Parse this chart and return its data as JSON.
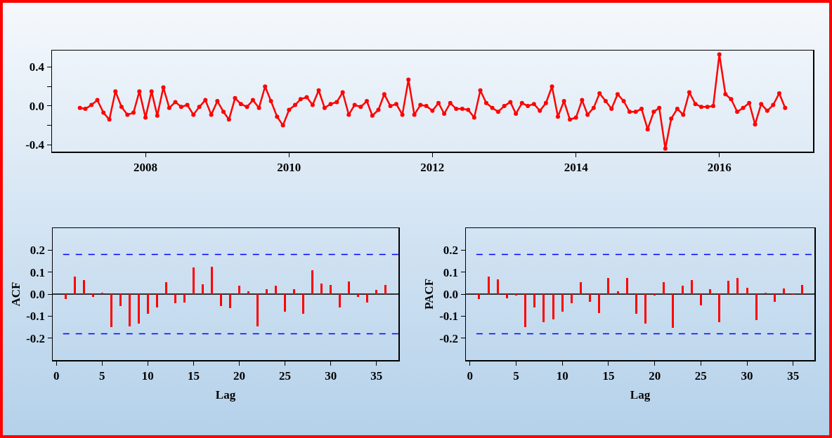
{
  "chart_data": [
    {
      "type": "line",
      "color": "#ff0000",
      "marker": "circle",
      "x": [
        "2007-02",
        "2007-03",
        "2007-04",
        "2007-05",
        "2007-06",
        "2007-07",
        "2007-08",
        "2007-09",
        "2007-10",
        "2007-11",
        "2007-12",
        "2008-01",
        "2008-02",
        "2008-03",
        "2008-04",
        "2008-05",
        "2008-06",
        "2008-07",
        "2008-08",
        "2008-09",
        "2008-10",
        "2008-11",
        "2008-12",
        "2009-01",
        "2009-02",
        "2009-03",
        "2009-04",
        "2009-05",
        "2009-06",
        "2009-07",
        "2009-08",
        "2009-09",
        "2009-10",
        "2009-11",
        "2009-12",
        "2010-01",
        "2010-02",
        "2010-03",
        "2010-04",
        "2010-05",
        "2010-06",
        "2010-07",
        "2010-08",
        "2010-09",
        "2010-10",
        "2010-11",
        "2010-12",
        "2011-01",
        "2011-02",
        "2011-03",
        "2011-04",
        "2011-05",
        "2011-06",
        "2011-07",
        "2011-08",
        "2011-09",
        "2011-10",
        "2011-11",
        "2011-12",
        "2012-01",
        "2012-02",
        "2012-03",
        "2012-04",
        "2012-05",
        "2012-06",
        "2012-07",
        "2012-08",
        "2012-09",
        "2012-10",
        "2012-11",
        "2012-12",
        "2013-01",
        "2013-02",
        "2013-03",
        "2013-04",
        "2013-05",
        "2013-06",
        "2013-07",
        "2013-08",
        "2013-09",
        "2013-10",
        "2013-11",
        "2013-12",
        "2014-01",
        "2014-02",
        "2014-03",
        "2014-04",
        "2014-05",
        "2014-06",
        "2014-07",
        "2014-08",
        "2014-09",
        "2014-10",
        "2014-11",
        "2014-12",
        "2015-01",
        "2015-02",
        "2015-03",
        "2015-04",
        "2015-05",
        "2015-06",
        "2015-07",
        "2015-08",
        "2015-09",
        "2015-10",
        "2015-11",
        "2015-12",
        "2016-01",
        "2016-02",
        "2016-03",
        "2016-04",
        "2016-05",
        "2016-06",
        "2016-07",
        "2016-08",
        "2016-09",
        "2016-10",
        "2016-11",
        "2016-12"
      ],
      "values": [
        -0.02,
        -0.03,
        0.01,
        0.06,
        -0.07,
        -0.14,
        0.15,
        -0.01,
        -0.09,
        -0.07,
        0.15,
        -0.12,
        0.15,
        -0.1,
        0.19,
        -0.02,
        0.04,
        -0.01,
        0.01,
        -0.09,
        -0.01,
        0.06,
        -0.09,
        0.05,
        -0.06,
        -0.14,
        0.08,
        0.02,
        -0.01,
        0.06,
        -0.02,
        0.2,
        0.05,
        -0.11,
        -0.2,
        -0.04,
        0.01,
        0.07,
        0.09,
        0.01,
        0.16,
        -0.02,
        0.02,
        0.04,
        0.14,
        -0.09,
        0.01,
        -0.01,
        0.05,
        -0.1,
        -0.04,
        0.12,
        0.0,
        0.02,
        -0.09,
        0.27,
        -0.09,
        0.01,
        0.0,
        -0.05,
        0.03,
        -0.08,
        0.03,
        -0.03,
        -0.03,
        -0.04,
        -0.12,
        0.16,
        0.03,
        -0.02,
        -0.06,
        0.0,
        0.04,
        -0.08,
        0.03,
        0.0,
        0.02,
        -0.05,
        0.03,
        0.2,
        -0.11,
        0.05,
        -0.14,
        -0.12,
        0.06,
        -0.09,
        -0.02,
        0.13,
        0.05,
        -0.03,
        0.12,
        0.05,
        -0.06,
        -0.06,
        -0.03,
        -0.24,
        -0.06,
        -0.02,
        -0.44,
        -0.13,
        -0.03,
        -0.09,
        0.14,
        0.02,
        -0.01,
        -0.01,
        0.0,
        0.53,
        0.12,
        0.07,
        -0.06,
        -0.02,
        0.03,
        -0.19,
        0.02,
        -0.05,
        0.01,
        0.13,
        -0.02
      ],
      "xlim": [
        "2006-09-12",
        "2017-04-22"
      ],
      "xticks": [
        "2008",
        "2010",
        "2012",
        "2014",
        "2016"
      ],
      "ylim": [
        -0.47,
        0.57
      ],
      "yticks": [
        0.4,
        {
          "value": 0.2,
          "label": null
        },
        {
          "value": 0,
          "label": "0.0"
        },
        {
          "value": -0.2,
          "label": null
        },
        -0.4
      ]
    },
    {
      "type": "bar",
      "color": "#ff0000",
      "xlabel": "Lag",
      "ylabel": "ACF",
      "x": [
        1,
        2,
        3,
        4,
        5,
        6,
        7,
        8,
        9,
        10,
        11,
        12,
        13,
        14,
        15,
        16,
        17,
        18,
        19,
        20,
        21,
        22,
        23,
        24,
        25,
        26,
        27,
        28,
        29,
        30,
        31,
        32,
        33,
        34,
        35,
        36
      ],
      "values": [
        -0.022,
        0.08,
        0.064,
        -0.014,
        0.006,
        -0.15,
        -0.054,
        -0.146,
        -0.135,
        -0.089,
        -0.062,
        0.053,
        -0.042,
        -0.037,
        0.122,
        0.044,
        0.123,
        -0.054,
        -0.065,
        0.037,
        0.014,
        -0.146,
        0.022,
        0.037,
        -0.081,
        0.022,
        -0.088,
        0.11,
        0.049,
        0.041,
        -0.062,
        0.056,
        -0.012,
        -0.037,
        0.018,
        0.041
      ],
      "xlim": [
        -0.4,
        37.4
      ],
      "xticks": [
        0,
        5,
        10,
        15,
        20,
        25,
        30,
        35
      ],
      "ylim": [
        -0.3,
        0.3
      ],
      "yticks": [
        0.2,
        0.1,
        {
          "value": 0,
          "label": "0.0"
        },
        -0.1,
        -0.2
      ],
      "ref_lines": [
        {
          "axis": "y",
          "value": 0.18,
          "color": "#0000ff",
          "line_style": "dashed"
        },
        {
          "axis": "y",
          "value": -0.18,
          "color": "#0000ff",
          "line_style": "dashed"
        }
      ]
    },
    {
      "type": "bar",
      "color": "#ff0000",
      "xlabel": "Lag",
      "ylabel": "PACF",
      "x": [
        1,
        2,
        3,
        4,
        5,
        6,
        7,
        8,
        9,
        10,
        11,
        12,
        13,
        14,
        15,
        16,
        17,
        18,
        19,
        20,
        21,
        22,
        23,
        24,
        25,
        26,
        27,
        28,
        29,
        30,
        31,
        32,
        33,
        34,
        35,
        36
      ],
      "values": [
        -0.022,
        0.08,
        0.068,
        -0.018,
        -0.006,
        -0.151,
        -0.06,
        -0.128,
        -0.116,
        -0.079,
        -0.041,
        0.053,
        -0.036,
        -0.086,
        0.072,
        0.014,
        0.075,
        -0.09,
        -0.133,
        -0.007,
        0.053,
        -0.154,
        0.037,
        0.065,
        -0.051,
        0.023,
        -0.128,
        0.06,
        0.072,
        0.03,
        -0.117,
        0.006,
        -0.036,
        0.026,
        -0.002,
        0.041
      ],
      "xlim": [
        -0.44,
        37.3
      ],
      "xticks": [
        0,
        5,
        10,
        15,
        20,
        25,
        30,
        35
      ],
      "ylim": [
        -0.3,
        0.3
      ],
      "yticks": [
        0.2,
        0.1,
        {
          "value": 0,
          "label": "0.0"
        },
        -0.1,
        -0.2
      ],
      "ref_lines": [
        {
          "axis": "y",
          "value": 0.18,
          "color": "#0000ff",
          "line_style": "dashed"
        },
        {
          "axis": "y",
          "value": -0.18,
          "color": "#0000ff",
          "line_style": "dashed"
        }
      ]
    }
  ]
}
